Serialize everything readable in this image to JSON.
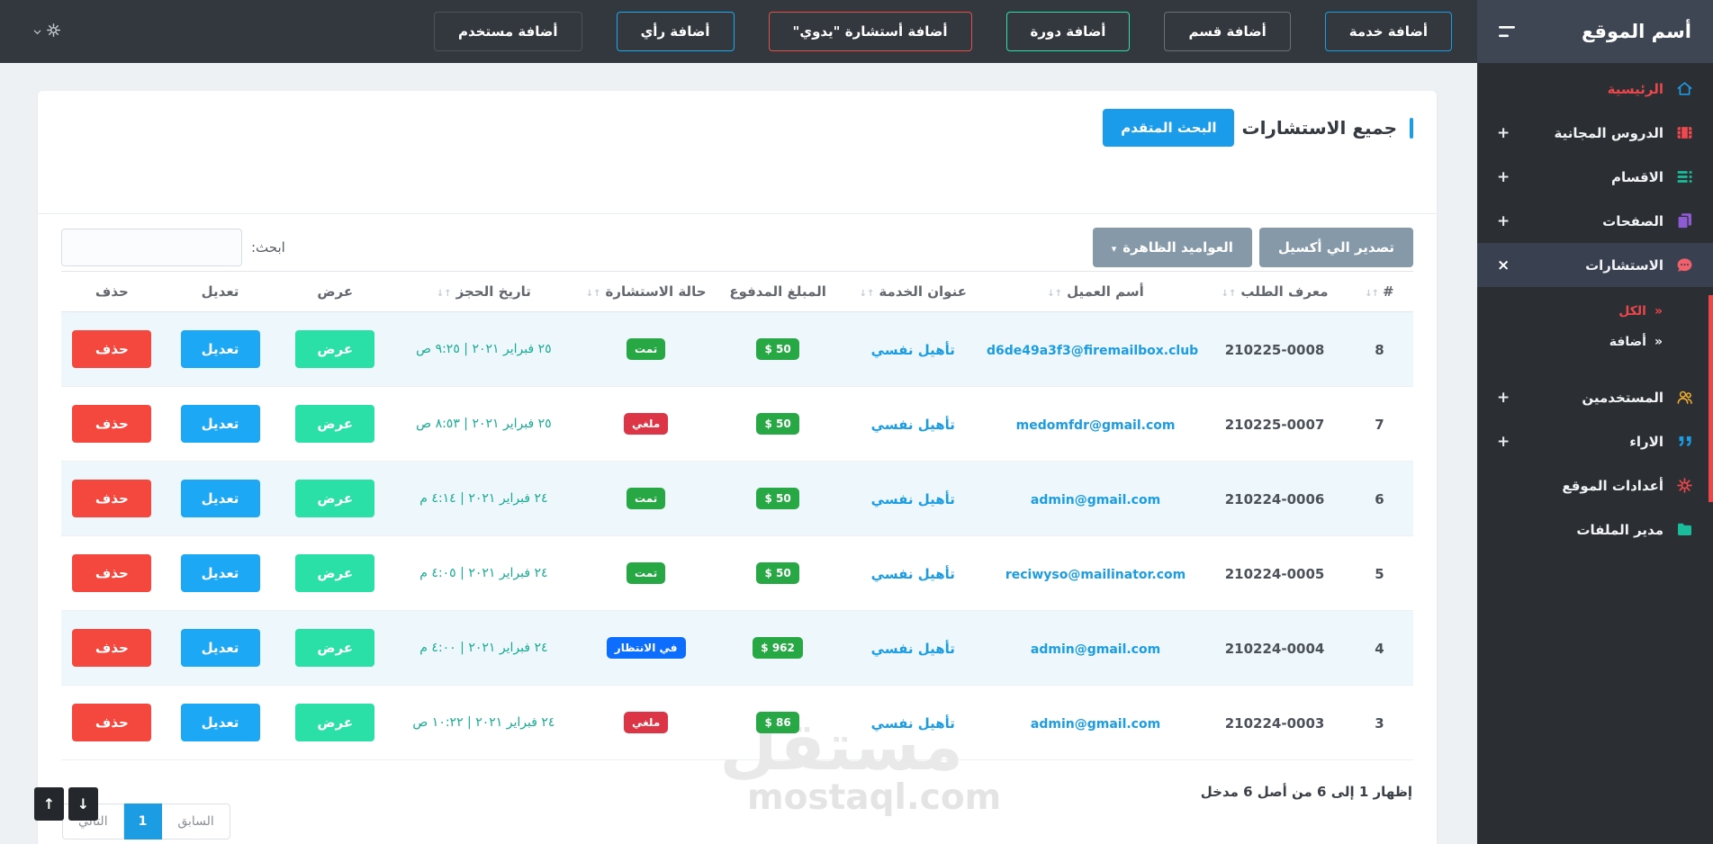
{
  "brand": {
    "title": "أسم الموقع"
  },
  "navbar": {
    "buttons": [
      {
        "label": "أضافة خدمة",
        "accent": "#1b9ce3"
      },
      {
        "label": "أضافة قسم",
        "accent": "#697179"
      },
      {
        "label": "أضافة دورة",
        "accent": "#2ee0a7"
      },
      {
        "label": "أضافة أستشارة \"يدوي\"",
        "accent": "#e25148"
      },
      {
        "label": "أضافة رأي",
        "accent": "#1ba9f0"
      },
      {
        "label": "أضافة مستخدم",
        "accent": "#4b5259"
      }
    ]
  },
  "sidebar": {
    "items": [
      {
        "label": "الرئيسية",
        "icon": "home-icon",
        "icon_color": "#1b9ce3"
      },
      {
        "label": "الدروس المجانية",
        "icon": "video-icon",
        "icon_color": "#f0484e",
        "expandable": true
      },
      {
        "label": "الاقسام",
        "icon": "list-icon",
        "icon_color": "#1abc9c",
        "expandable": true
      },
      {
        "label": "الصفحات",
        "icon": "pages-icon",
        "icon_color": "#8e5bd4",
        "expandable": true
      },
      {
        "label": "الاستشارات",
        "icon": "chat-icon",
        "icon_color": "#f2606b",
        "active": true
      },
      {
        "label": "المستخدمين",
        "icon": "users-icon",
        "icon_color": "#f0ad2d",
        "expandable": true
      },
      {
        "label": "الاراء",
        "icon": "quote-icon",
        "icon_color": "#1b9ce3",
        "expandable": true
      },
      {
        "label": "أعدادات الموقع",
        "icon": "gear-icon",
        "icon_color": "#e8474b"
      },
      {
        "label": "مدير الملفات",
        "icon": "folder-icon",
        "icon_color": "#1abc9c"
      }
    ],
    "submenu": [
      {
        "label": "الكل",
        "active": true
      },
      {
        "label": "أضافة"
      }
    ]
  },
  "page": {
    "title": "جميع الاستشارات",
    "advanced_search_tab": "البحث المتقدم",
    "export_button": "تصدير الي أكسيل",
    "columns_button": "العواميد الظاهرة",
    "search_label": "ابحث:"
  },
  "table": {
    "headers": [
      {
        "label": "#",
        "sortable": true
      },
      {
        "label": "معرف الطلب",
        "sortable": true
      },
      {
        "label": "أسم العميل",
        "sortable": true
      },
      {
        "label": "عنوان الخدمة",
        "sortable": true
      },
      {
        "label": "المبلغ المدفوع",
        "sortable": false
      },
      {
        "label": "حالة الاستشارة",
        "sortable": true
      },
      {
        "label": "تاريخ الحجز",
        "sortable": true
      },
      {
        "label": "عرض",
        "sortable": false
      },
      {
        "label": "تعديل",
        "sortable": false
      },
      {
        "label": "حذف",
        "sortable": false
      }
    ],
    "actions": {
      "view": "عرض",
      "edit": "تعديل",
      "delete": "حذف"
    },
    "rows": [
      {
        "index": "8",
        "order_id": "210225-0008",
        "client": "d6de49a3f3@firemailbox.club",
        "service": "تأهيل نفسي",
        "amount": "$ 50",
        "status": "تمت",
        "status_type": "success",
        "date": "٢٥ فبراير ٢٠٢١ | ٩:٢٥ ص"
      },
      {
        "index": "7",
        "order_id": "210225-0007",
        "client": "medomfdr@gmail.com",
        "service": "تأهيل نفسي",
        "amount": "$ 50",
        "status": "ملغي",
        "status_type": "danger",
        "date": "٢٥ فبراير ٢٠٢١ | ٨:٥٣ ص"
      },
      {
        "index": "6",
        "order_id": "210224-0006",
        "client": "admin@gmail.com",
        "service": "تأهيل نفسي",
        "amount": "$ 50",
        "status": "تمت",
        "status_type": "success",
        "date": "٢٤ فبراير ٢٠٢١ | ٤:١٤ م"
      },
      {
        "index": "5",
        "order_id": "210224-0005",
        "client": "reciwyso@mailinator.com",
        "service": "تأهيل نفسي",
        "amount": "$ 50",
        "status": "تمت",
        "status_type": "success",
        "date": "٢٤ فبراير ٢٠٢١ | ٤:٠٥ م"
      },
      {
        "index": "4",
        "order_id": "210224-0004",
        "client": "admin@gmail.com",
        "service": "تأهيل نفسي",
        "amount": "$ 962",
        "status": "في الانتظار",
        "status_type": "waiting",
        "date": "٢٤ فبراير ٢٠٢١ | ٤:٠٠ م"
      },
      {
        "index": "3",
        "order_id": "210224-0003",
        "client": "admin@gmail.com",
        "service": "تأهيل نفسي",
        "amount": "$ 86",
        "status": "ملغي",
        "status_type": "danger",
        "date": "٢٤ فبراير ٢٠٢١ | ١٠:٢٢ ص"
      }
    ]
  },
  "footer": {
    "info": "إظهار 1 إلى 6 من أصل 6 مدخل",
    "pagination": {
      "prev": "السابق",
      "page": "1",
      "next": "التالي"
    }
  },
  "watermark": {
    "arabic": "مستقل",
    "domain": "mostaql.com"
  },
  "icons": {
    "sort": "↑↓",
    "caret": "▾",
    "close": "×",
    "chevrons": "«",
    "plus": "+",
    "scroll_up": "↑",
    "scroll_down": "↓"
  },
  "colors": {
    "accent_blue": "#1b9ce3",
    "success": "#28a745",
    "danger": "#dc3545",
    "waiting": "#0d6efd",
    "view_mint": "#2be0a7",
    "edit_blue": "#1ca8f4",
    "delete_red": "#f4473d",
    "sidebar_bg": "#2b2e33",
    "brand_bg": "#3e4553",
    "navbar_bg": "#33383e",
    "date_teal": "#18ab93"
  }
}
